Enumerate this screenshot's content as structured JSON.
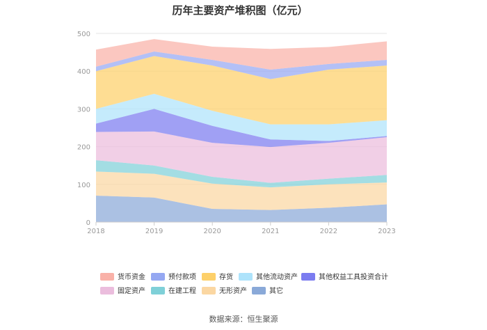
{
  "chart_data": {
    "type": "area",
    "stacked": true,
    "title": "历年主要资产堆积图（亿元）",
    "x": [
      "2018",
      "2019",
      "2020",
      "2021",
      "2022",
      "2023"
    ],
    "ylim": [
      0,
      500
    ],
    "yticks": [
      "0",
      "100",
      "200",
      "300",
      "400",
      "500"
    ],
    "grid": true,
    "legend_position": "bottom",
    "series": [
      {
        "name": "其它",
        "color": "#8aa9d8",
        "values": [
          70,
          65,
          35,
          32,
          38,
          47
        ]
      },
      {
        "name": "无形资产",
        "color": "#fbd7a2",
        "values": [
          64,
          63,
          67,
          60,
          62,
          58
        ]
      },
      {
        "name": "在建工程",
        "color": "#7fd0d8",
        "values": [
          30,
          22,
          18,
          12,
          15,
          20
        ]
      },
      {
        "name": "固定资产",
        "color": "#ebbddd",
        "values": [
          75,
          90,
          90,
          95,
          95,
          100
        ]
      },
      {
        "name": "其他权益工具投资合计",
        "color": "#7b7cf0",
        "values": [
          22,
          60,
          45,
          20,
          5,
          3
        ]
      },
      {
        "name": "其他流动资产",
        "color": "#aee3fb",
        "values": [
          39,
          40,
          40,
          40,
          44,
          42
        ]
      },
      {
        "name": "存货",
        "color": "#fdd06a",
        "values": [
          100,
          100,
          120,
          120,
          145,
          145
        ]
      },
      {
        "name": "预付款项",
        "color": "#95a8f2",
        "values": [
          12,
          12,
          15,
          25,
          15,
          15
        ]
      },
      {
        "name": "货币资金",
        "color": "#f9b1a8",
        "values": [
          45,
          33,
          35,
          55,
          45,
          49
        ]
      }
    ],
    "legend_order": [
      "货币资金",
      "预付款项",
      "存货",
      "其他流动资产",
      "其他权益工具投资合计",
      "固定资产",
      "在建工程",
      "无形资产",
      "其它"
    ]
  },
  "source_label": "数据来源：恒生聚源"
}
